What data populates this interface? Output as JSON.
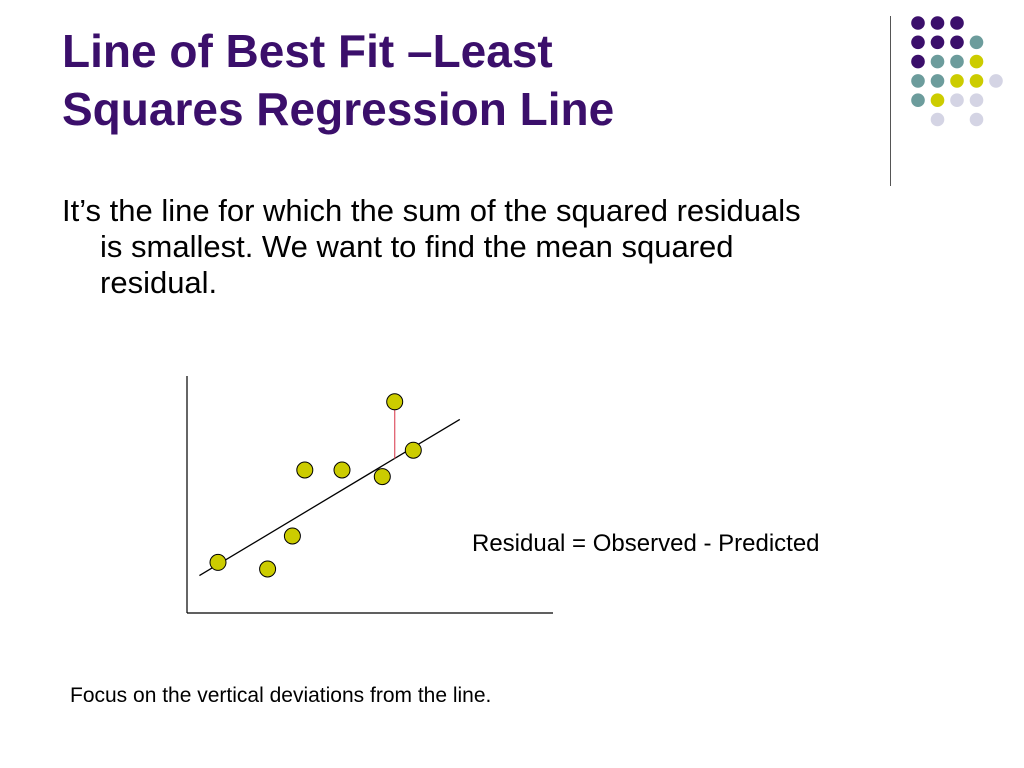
{
  "slide": {
    "title_line1": "Line of Best Fit –Least",
    "title_line2": "Squares Regression Line",
    "body_line1": "It’s the line for which the sum of the squared residuals",
    "body_line2": "is smallest.  We want to find the mean squared",
    "body_line3": "residual.",
    "residual_formula": "Residual = Observed - Predicted",
    "footnote": "Focus on the vertical deviations from the line."
  },
  "colors": {
    "title": "#3b0f6b",
    "point_fill": "#cccc00",
    "residual_line": "#e06070",
    "regression_line": "#000000",
    "deco_purple": "#3b0f6b",
    "deco_teal": "#6c9c9c",
    "deco_yellow": "#cccc00",
    "deco_lavender": "#d4d4e4"
  },
  "decoration": {
    "dot_grid": [
      [
        "purple",
        "purple",
        "purple",
        null
      ],
      [
        "purple",
        "purple",
        "purple",
        "teal"
      ],
      [
        "purple",
        "teal",
        "teal",
        "yellow"
      ],
      [
        "teal",
        "teal",
        "yellow",
        "yellow",
        "lavender"
      ],
      [
        "teal",
        "yellow",
        "lavender",
        "lavender"
      ],
      [
        null,
        "lavender",
        null,
        "lavender"
      ]
    ]
  },
  "diagram": {
    "points": [
      {
        "x": 1.0,
        "y": 2.3
      },
      {
        "x": 2.6,
        "y": 2.0
      },
      {
        "x": 3.8,
        "y": 6.5
      },
      {
        "x": 3.4,
        "y": 3.5
      },
      {
        "x": 5.0,
        "y": 6.5
      },
      {
        "x": 6.3,
        "y": 6.2
      },
      {
        "x": 7.3,
        "y": 7.4
      },
      {
        "x": 6.7,
        "y": 9.6
      }
    ],
    "regression_line": {
      "x1": 0.4,
      "y1": 1.7,
      "x2": 8.8,
      "y2": 8.8
    },
    "residual_point_index": 7
  }
}
